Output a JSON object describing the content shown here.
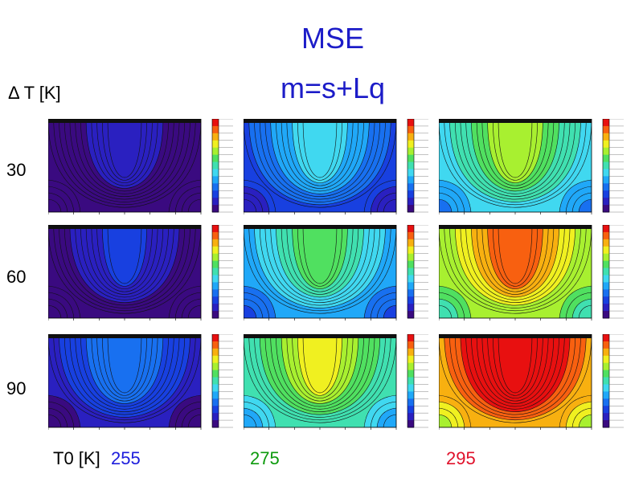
{
  "title": "MSE",
  "subtitle": "m=s+Lq",
  "delta_t_label": "Δ T [K]",
  "t0_label": "T0 [K]",
  "rows": [
    {
      "delta_t": "30"
    },
    {
      "delta_t": "60"
    },
    {
      "delta_t": "90"
    }
  ],
  "columns": [
    {
      "t0": "255",
      "color": "#1c1cdc"
    },
    {
      "t0": "275",
      "color": "#0c9a0c"
    },
    {
      "t0": "295",
      "color": "#e0102a"
    }
  ],
  "colors": {
    "title": "#1c1cc8",
    "colorbar": [
      "#ff0000",
      "#ff5500",
      "#ffaa00",
      "#ffff00",
      "#aaff00",
      "#00e000",
      "#00e0a0",
      "#00d0ff",
      "#0090ff",
      "#0040ff",
      "#2020c0",
      "#4010a0",
      "#300060"
    ]
  },
  "panels": [
    {
      "row": 0,
      "col": 0,
      "warmth": 0.12
    },
    {
      "row": 0,
      "col": 1,
      "warmth": 0.35
    },
    {
      "row": 0,
      "col": 2,
      "warmth": 0.55
    },
    {
      "row": 1,
      "col": 0,
      "warmth": 0.15
    },
    {
      "row": 1,
      "col": 1,
      "warmth": 0.48
    },
    {
      "row": 1,
      "col": 2,
      "warmth": 0.75
    },
    {
      "row": 2,
      "col": 0,
      "warmth": 0.25
    },
    {
      "row": 2,
      "col": 1,
      "warmth": 0.6
    },
    {
      "row": 2,
      "col": 2,
      "warmth": 0.95
    }
  ]
}
